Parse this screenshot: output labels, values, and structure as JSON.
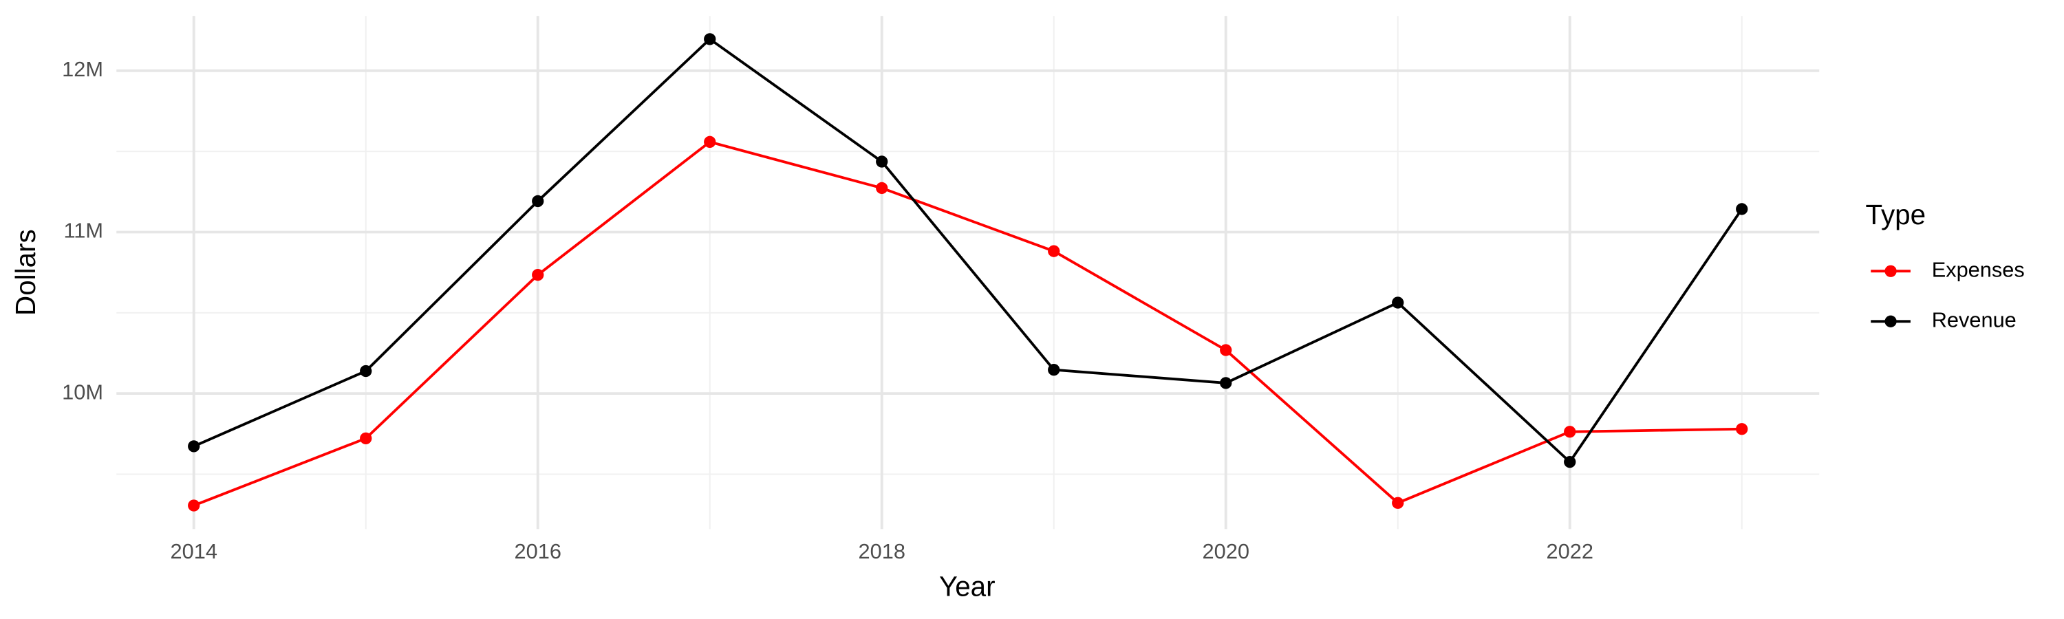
{
  "chart_data": {
    "type": "line",
    "x_label": "Year",
    "y_label": "Dollars",
    "legend_title": "Type",
    "legend_position": "right",
    "grid": true,
    "x": [
      2014,
      2015,
      2016,
      2017,
      2018,
      2019,
      2020,
      2021,
      2022,
      2023
    ],
    "series": [
      {
        "name": "Expenses",
        "color": "#ff0000",
        "values": [
          9306000,
          9722000,
          10735000,
          11559000,
          11273000,
          10882000,
          10269000,
          9322000,
          9763000,
          9780000
        ]
      },
      {
        "name": "Revenue",
        "color": "#000000",
        "values": [
          9673000,
          10139000,
          11192000,
          12196000,
          11437000,
          10147000,
          10065000,
          10563000,
          9576000,
          11143000
        ]
      }
    ],
    "xlim": [
      2013.55,
      2023.45
    ],
    "xticks": [
      2014,
      2016,
      2018,
      2020,
      2022
    ],
    "minor_xticks": [
      2015,
      2017,
      2019,
      2021,
      2023
    ],
    "ylim": [
      9160000,
      12340000
    ],
    "yticks": [
      {
        "value": 10000000,
        "label": "10M"
      },
      {
        "value": 11000000,
        "label": "11M"
      },
      {
        "value": 12000000,
        "label": "12M"
      }
    ],
    "minor_yticks": [
      9500000,
      10500000,
      11500000
    ]
  }
}
